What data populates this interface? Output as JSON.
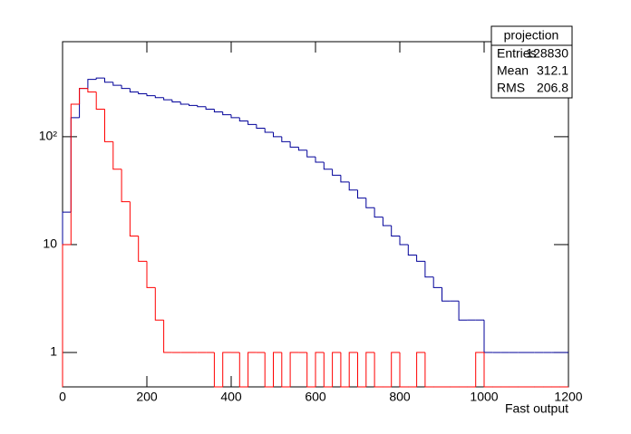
{
  "chart_data": {
    "type": "histogram",
    "x_label": "Fast output",
    "bins": [
      0,
      20,
      40,
      60,
      80,
      100,
      120,
      140,
      160,
      180,
      200,
      220,
      240,
      260,
      280,
      300,
      320,
      340,
      360,
      380,
      400,
      420,
      440,
      460,
      480,
      500,
      520,
      540,
      560,
      580,
      600,
      620,
      640,
      660,
      680,
      700,
      720,
      740,
      760,
      780,
      800,
      820,
      840,
      860,
      880,
      900,
      920,
      940,
      960,
      980,
      1000,
      1020,
      1040,
      1060,
      1080,
      1100,
      1120,
      1140,
      1160,
      1180,
      1200
    ],
    "series": [
      {
        "color": "#000099",
        "values": [
          20,
          150,
          280,
          340,
          350,
          320,
          300,
          280,
          260,
          250,
          240,
          230,
          220,
          210,
          200,
          195,
          190,
          180,
          170,
          160,
          150,
          140,
          130,
          120,
          110,
          100,
          90,
          80,
          75,
          65,
          58,
          50,
          44,
          38,
          32,
          27,
          22,
          18,
          15,
          12,
          10,
          8,
          7,
          5,
          4,
          3,
          3,
          2,
          2,
          2,
          1,
          1,
          1,
          1,
          1,
          1,
          1,
          1,
          1,
          1
        ]
      },
      {
        "color": "#ff0000",
        "values": [
          10,
          200,
          280,
          260,
          180,
          90,
          50,
          25,
          12,
          7,
          4,
          2,
          1,
          1,
          1,
          1,
          1,
          1,
          0,
          1,
          1,
          0,
          1,
          1,
          0,
          1,
          0,
          1,
          1,
          0,
          1,
          0,
          1,
          0,
          1,
          0,
          1,
          0,
          0,
          1,
          0,
          0,
          1,
          0,
          0,
          0,
          0,
          0,
          0,
          1,
          0,
          0,
          0,
          0,
          0,
          0,
          0,
          0,
          0,
          0
        ]
      }
    ],
    "xlim": [
      0,
      1200
    ],
    "xticks": [
      0,
      200,
      400,
      600,
      800,
      1000,
      1200
    ],
    "ylim": [
      0.48,
      760
    ],
    "log_y": true,
    "yticks": [
      1,
      10,
      {
        "value": 100,
        "label": "10²"
      }
    ],
    "stats": {
      "title": "projection",
      "rows": [
        [
          "Entries",
          128830
        ],
        [
          "Mean",
          312.1
        ],
        [
          "RMS",
          206.8
        ]
      ]
    }
  }
}
